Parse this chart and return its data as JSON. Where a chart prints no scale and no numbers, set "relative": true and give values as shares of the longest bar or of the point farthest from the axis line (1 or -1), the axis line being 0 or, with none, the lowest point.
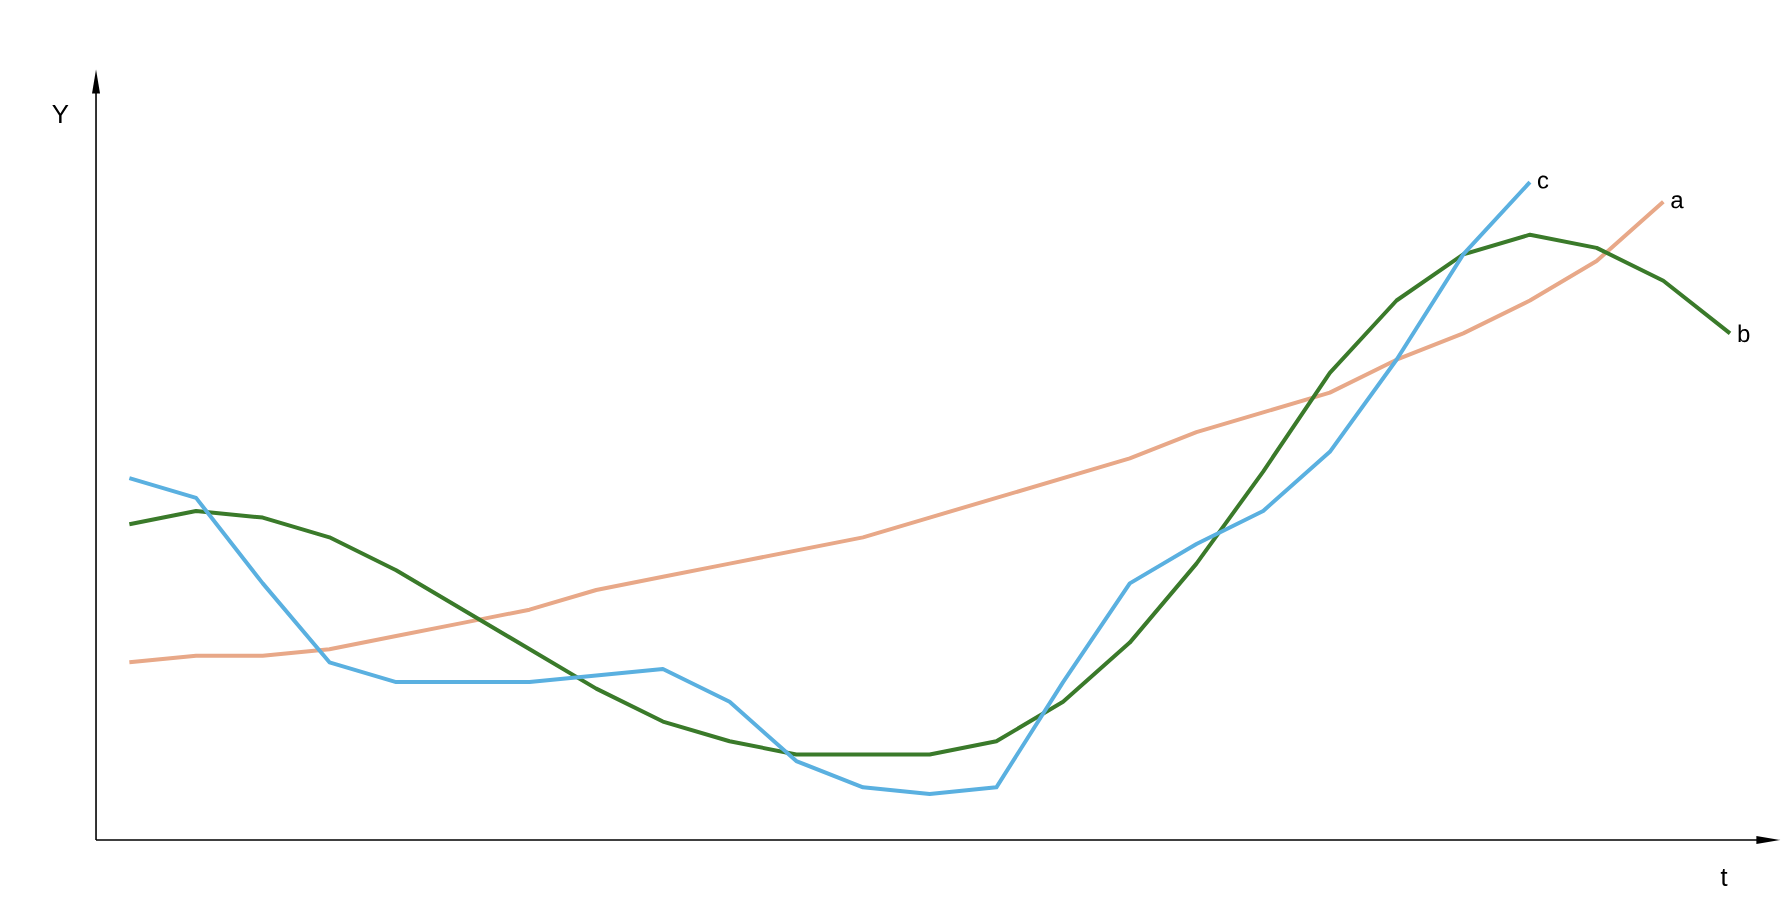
{
  "chart_data": {
    "type": "line",
    "relative": true,
    "xlabel": "t",
    "ylabel": "Y",
    "marker": "none",
    "line_style": "solid",
    "categories": [
      null,
      null,
      null,
      null,
      null,
      null,
      null,
      null,
      null,
      null,
      null,
      null,
      null,
      null,
      null,
      null,
      null,
      null,
      null,
      null,
      null,
      null,
      null,
      null,
      null
    ],
    "series": [
      {
        "name": "a",
        "color": "#e8a888",
        "values": [
          0.27,
          0.28,
          0.28,
          0.29,
          0.31,
          0.33,
          0.35,
          0.38,
          0.4,
          0.42,
          0.44,
          0.46,
          0.49,
          0.52,
          0.55,
          0.58,
          0.62,
          0.65,
          0.68,
          0.73,
          0.77,
          0.82,
          0.88,
          0.97,
          null
        ]
      },
      {
        "name": "b",
        "color": "#3a7a2a",
        "values": [
          0.48,
          0.5,
          0.49,
          0.46,
          0.41,
          0.35,
          0.29,
          0.23,
          0.18,
          0.15,
          0.13,
          0.13,
          0.13,
          0.15,
          0.21,
          0.3,
          0.42,
          0.56,
          0.71,
          0.82,
          0.89,
          0.92,
          0.9,
          0.85,
          0.77
        ]
      },
      {
        "name": "c",
        "color": "#5ab0e0",
        "values": [
          0.55,
          0.52,
          0.39,
          0.27,
          0.24,
          0.24,
          0.24,
          0.25,
          0.26,
          0.21,
          0.12,
          0.08,
          0.07,
          0.08,
          0.24,
          0.39,
          0.45,
          0.5,
          0.59,
          0.73,
          0.89,
          1,
          null,
          null,
          null
        ]
      }
    ]
  }
}
